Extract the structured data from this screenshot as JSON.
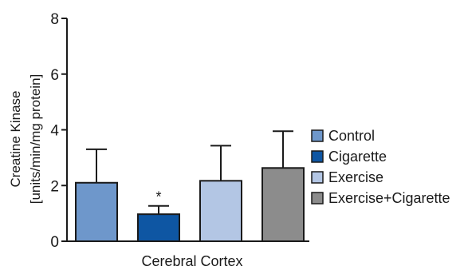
{
  "chart_data": {
    "type": "bar",
    "categories": [
      "Control",
      "Cigarette",
      "Exercise",
      "Exercise+Cigarette"
    ],
    "values": [
      2.1,
      0.97,
      2.17,
      2.63
    ],
    "error_upper": [
      3.3,
      1.27,
      3.43,
      3.95
    ],
    "colors": [
      "#6e97cb",
      "#0e56a3",
      "#b3c6e4",
      "#8c8c8c"
    ],
    "xlabel": "Cerebral Cortex",
    "ylabel": [
      "Creatine Kinase",
      "[units/min/mg protein]"
    ],
    "ylim": [
      0,
      8
    ],
    "yticks": [
      0,
      2,
      4,
      6,
      8
    ],
    "grid": false,
    "legend_position": "right",
    "annotations": [
      {
        "category": "Cigarette",
        "text": "*"
      }
    ]
  }
}
